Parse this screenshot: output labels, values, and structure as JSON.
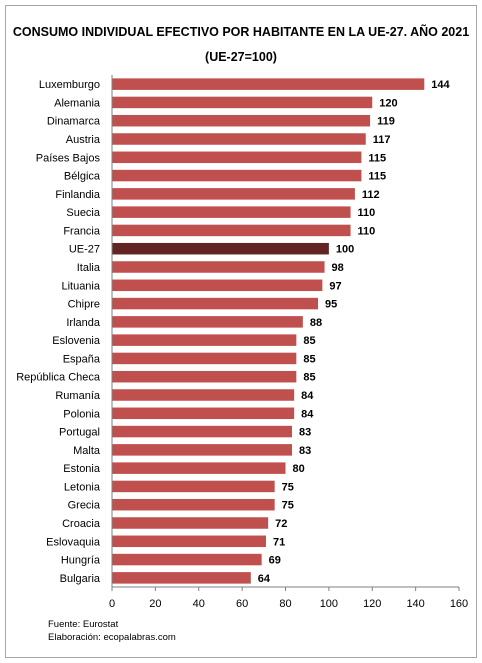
{
  "chart_data": {
    "type": "bar",
    "orientation": "horizontal",
    "title": "CONSUMO INDIVIDUAL EFECTIVO POR HABITANTE EN LA UE-27. AÑO 2021",
    "subtitle": "(UE-27=100)",
    "categories": [
      "Luxemburgo",
      "Alemania",
      "Dinamarca",
      "Austria",
      "Países Bajos",
      "Bélgica",
      "Finlandia",
      "Suecia",
      "Francia",
      "UE-27",
      "Italia",
      "Lituania",
      "Chipre",
      "Irlanda",
      "Eslovenia",
      "España",
      "República Checa",
      "Rumanía",
      "Polonia",
      "Portugal",
      "Malta",
      "Estonia",
      "Letonia",
      "Grecia",
      "Croacia",
      "Eslovaquia",
      "Hungría",
      "Bulgaria"
    ],
    "values": [
      144,
      120,
      119,
      117,
      115,
      115,
      112,
      110,
      110,
      100,
      98,
      97,
      95,
      88,
      85,
      85,
      85,
      84,
      84,
      83,
      83,
      80,
      75,
      75,
      72,
      71,
      69,
      64
    ],
    "highlight": "UE-27",
    "xlim": [
      0,
      160
    ],
    "xticks": [
      0,
      20,
      40,
      60,
      80,
      100,
      120,
      140,
      160
    ],
    "grid": false,
    "legend": "none",
    "colors": {
      "bar": "#c0504d",
      "highlight": "#632523"
    },
    "xlabel": "",
    "ylabel": ""
  },
  "footer": {
    "source": "Fuente: Eurostat",
    "credit": "Elaboración: ecopalabras.com"
  }
}
